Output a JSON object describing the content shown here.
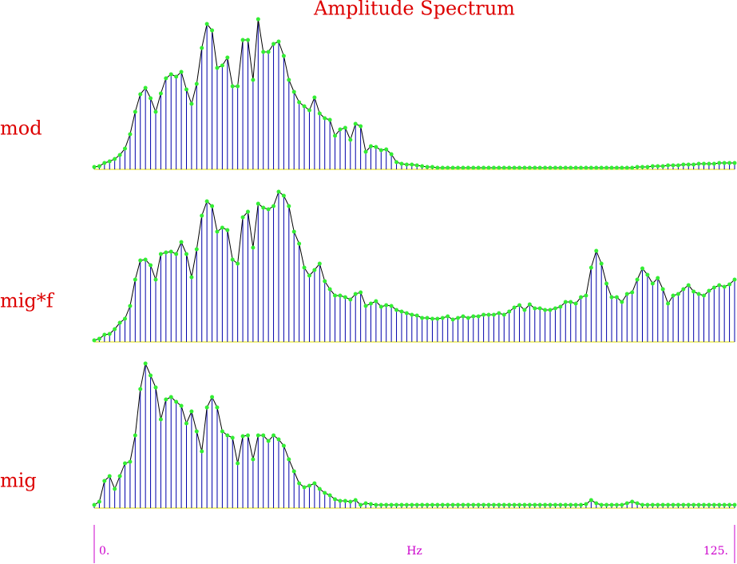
{
  "chart_data": {
    "type": "stem",
    "title": "Amplitude Spectrum",
    "xlabel": "Hz",
    "x": [
      0,
      1,
      2,
      3,
      4,
      5,
      6,
      7,
      8,
      9,
      10,
      11,
      12,
      13,
      14,
      15,
      16,
      17,
      18,
      19,
      20,
      21,
      22,
      23,
      24,
      25,
      26,
      27,
      28,
      29,
      30,
      31,
      32,
      33,
      34,
      35,
      36,
      37,
      38,
      39,
      40,
      41,
      42,
      43,
      44,
      45,
      46,
      47,
      48,
      49,
      50,
      51,
      52,
      53,
      54,
      55,
      56,
      57,
      58,
      59,
      60,
      61,
      62,
      63,
      64,
      65,
      66,
      67,
      68,
      69,
      70,
      71,
      72,
      73,
      74,
      75,
      76,
      77,
      78,
      79,
      80,
      81,
      82,
      83,
      84,
      85,
      86,
      87,
      88,
      89,
      90,
      91,
      92,
      93,
      94,
      95,
      96,
      97,
      98,
      99,
      100,
      101,
      102,
      103,
      104,
      105,
      106,
      107,
      108,
      109,
      110,
      111,
      112,
      113,
      114,
      115,
      116,
      117,
      118,
      119,
      120,
      121,
      122,
      123,
      124,
      125
    ],
    "xlim": [
      0,
      125
    ],
    "xticks": [
      {
        "value": 0,
        "label": "0."
      },
      {
        "value": 125,
        "label": "125."
      }
    ],
    "ylim": [
      0,
      200
    ],
    "stem_color": "#0000aa",
    "line_color": "#000000",
    "marker_color": "#33ee33",
    "baseline_color": "#dddd00",
    "series": [
      {
        "name": "mod",
        "values": [
          3,
          4,
          8,
          10,
          13,
          18,
          26,
          44,
          72,
          94,
          102,
          89,
          72,
          95,
          114,
          119,
          116,
          122,
          100,
          82,
          107,
          152,
          182,
          174,
          127,
          130,
          140,
          104,
          104,
          162,
          162,
          112,
          188,
          147,
          147,
          157,
          160,
          142,
          112,
          97,
          84,
          79,
          74,
          90,
          70,
          64,
          62,
          42,
          50,
          52,
          37,
          57,
          54,
          22,
          29,
          28,
          24,
          25,
          19,
          9,
          7,
          6,
          6,
          5,
          4,
          3,
          3,
          2,
          2,
          2,
          2,
          2,
          2,
          2,
          2,
          2,
          2,
          2,
          2,
          2,
          2,
          2,
          2,
          2,
          2,
          2,
          2,
          2,
          2,
          2,
          2,
          2,
          2,
          2,
          2,
          2,
          2,
          2,
          2,
          2,
          2,
          2,
          2,
          2,
          2,
          2,
          3,
          3,
          3,
          4,
          4,
          4,
          5,
          5,
          5,
          6,
          6,
          6,
          7,
          7,
          7,
          7,
          8,
          8,
          8,
          8
        ]
      },
      {
        "name": "mig*f",
        "values": [
          2,
          4,
          9,
          10,
          16,
          24,
          29,
          45,
          78,
          102,
          103,
          96,
          78,
          110,
          112,
          113,
          110,
          125,
          110,
          81,
          116,
          158,
          176,
          170,
          138,
          143,
          140,
          103,
          98,
          156,
          163,
          118,
          173,
          168,
          166,
          170,
          188,
          183,
          170,
          138,
          123,
          93,
          83,
          90,
          98,
          76,
          66,
          58,
          58,
          56,
          53,
          60,
          62,
          45,
          48,
          51,
          44,
          46,
          45,
          40,
          38,
          36,
          34,
          33,
          30,
          30,
          29,
          29,
          30,
          32,
          28,
          30,
          32,
          30,
          32,
          32,
          34,
          34,
          34,
          36,
          34,
          38,
          43,
          46,
          40,
          47,
          42,
          42,
          40,
          40,
          42,
          44,
          50,
          50,
          48,
          56,
          58,
          93,
          114,
          98,
          73,
          56,
          56,
          50,
          60,
          62,
          78,
          92,
          84,
          73,
          80,
          66,
          48,
          58,
          60,
          66,
          71,
          63,
          60,
          58,
          64,
          68,
          71,
          69,
          72,
          78
        ]
      },
      {
        "name": "mig",
        "values": [
          4,
          8,
          34,
          40,
          24,
          40,
          56,
          58,
          91,
          149,
          181,
          166,
          151,
          111,
          136,
          139,
          133,
          128,
          106,
          121,
          96,
          71,
          126,
          139,
          126,
          96,
          91,
          88,
          56,
          90,
          91,
          61,
          91,
          91,
          84,
          91,
          86,
          78,
          61,
          46,
          31,
          26,
          28,
          31,
          24,
          19,
          16,
          11,
          9,
          9,
          8,
          10,
          4,
          6,
          5,
          4,
          4,
          4,
          4,
          4,
          4,
          4,
          4,
          4,
          4,
          4,
          4,
          4,
          4,
          4,
          4,
          4,
          4,
          4,
          4,
          4,
          4,
          4,
          4,
          4,
          4,
          4,
          4,
          4,
          4,
          4,
          4,
          4,
          4,
          4,
          4,
          4,
          4,
          4,
          4,
          4,
          5,
          10,
          6,
          4,
          4,
          4,
          4,
          4,
          6,
          8,
          6,
          4,
          4,
          4,
          4,
          4,
          4,
          4,
          4,
          4,
          4,
          4,
          4,
          4,
          4,
          4,
          4,
          4,
          4,
          4
        ]
      }
    ]
  }
}
